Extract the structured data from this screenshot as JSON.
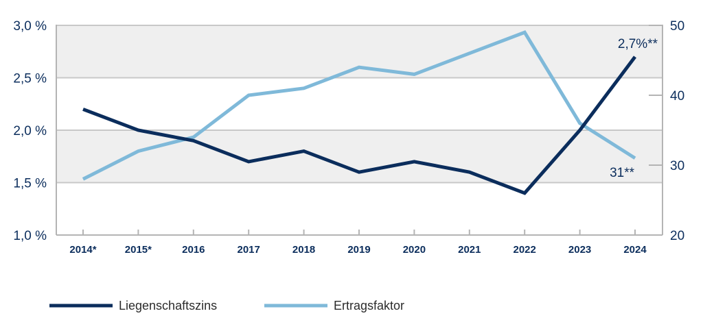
{
  "chart_data": {
    "type": "line",
    "categories": [
      "2014*",
      "2015*",
      "2016",
      "2017",
      "2018",
      "2019",
      "2020",
      "2021",
      "2022",
      "2023",
      "2024"
    ],
    "series": [
      {
        "name": "Liegenschaftszins",
        "axis": "left",
        "color": "#0b2d5c",
        "values": [
          2.2,
          2.0,
          1.9,
          1.7,
          1.8,
          1.6,
          1.7,
          1.6,
          1.4,
          2.0,
          2.7
        ]
      },
      {
        "name": "Ertragsfaktor",
        "axis": "right",
        "color": "#7fb9d9",
        "values": [
          28,
          32,
          34,
          40,
          41,
          44,
          43,
          46,
          49,
          36,
          31
        ]
      }
    ],
    "y_left": {
      "range": [
        1.0,
        3.0
      ],
      "ticks": [
        1.0,
        1.5,
        2.0,
        2.5,
        3.0
      ],
      "tick_labels": [
        "1,0 %",
        "1,5 %",
        "2,0 %",
        "2,5 %",
        "3,0 %"
      ]
    },
    "y_right": {
      "range": [
        20,
        50
      ],
      "ticks": [
        20,
        30,
        40,
        50
      ],
      "tick_labels": [
        "20",
        "30",
        "40",
        "50"
      ]
    },
    "annotations": {
      "left_last": "2,7%**",
      "right_last": "31**"
    },
    "colors": {
      "band": "#efefef",
      "grid": "#c8c8c8",
      "axis": "#b4b4b4",
      "text": "#0b2d5c"
    },
    "legend_position": "bottom-left",
    "grid": true
  }
}
